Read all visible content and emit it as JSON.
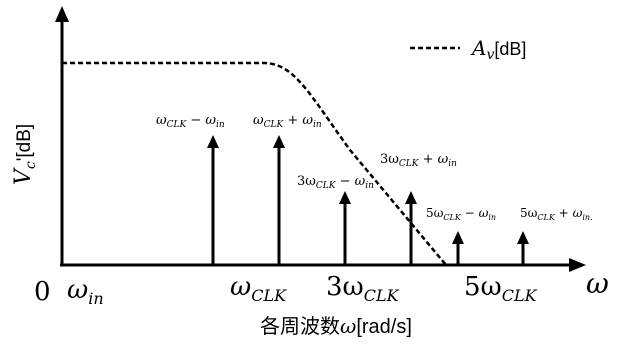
{
  "legend": {
    "symbol": "A",
    "symbol_sub": "v",
    "unit": "[dB]"
  },
  "axes": {
    "y_label_main": "V",
    "y_label_sub": "c",
    "y_label_suffix": "'[dB]",
    "x_symbol": "ω",
    "origin": "0",
    "x_title_prefix": "各周波数",
    "x_title_symbol": "ω",
    "x_title_unit": "[rad/s]"
  },
  "x_ticks": [
    {
      "id": "win",
      "base": "ω",
      "sub": "in"
    },
    {
      "id": "wclk",
      "base": "ω",
      "sub": "CLK"
    },
    {
      "id": "3wclk",
      "base": "3ω",
      "sub": "CLK"
    },
    {
      "id": "5wclk",
      "base": "5ω",
      "sub": "CLK"
    }
  ],
  "spectral_lines": [
    {
      "id": "clk-minus-in",
      "parts": [
        [
          "ω",
          "CLK"
        ],
        [
          "−",
          ""
        ],
        [
          "ω",
          "in"
        ]
      ]
    },
    {
      "id": "clk-plus-in",
      "parts": [
        [
          "ω",
          "CLK"
        ],
        [
          "+",
          ""
        ],
        [
          "ω",
          "in"
        ]
      ]
    },
    {
      "id": "3clk-minus-in",
      "parts": [
        [
          "3ω",
          "CLK"
        ],
        [
          "−",
          ""
        ],
        [
          "ω",
          "in"
        ]
      ]
    },
    {
      "id": "3clk-plus-in",
      "parts": [
        [
          "3ω",
          "CLK"
        ],
        [
          "+",
          ""
        ],
        [
          "ω",
          "in"
        ]
      ]
    },
    {
      "id": "5clk-minus-in",
      "parts": [
        [
          "5ω",
          "CLK"
        ],
        [
          "−",
          ""
        ],
        [
          "ω",
          "in"
        ]
      ]
    },
    {
      "id": "5clk-plus-in",
      "parts": [
        [
          "5ω",
          "CLK"
        ],
        [
          "+",
          ""
        ],
        [
          "ω",
          "in."
        ]
      ]
    }
  ]
}
